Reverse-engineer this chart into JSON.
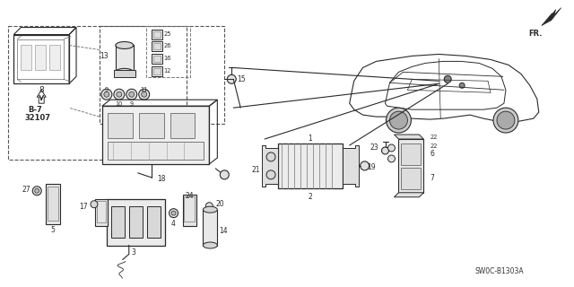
{
  "bg_color": "#ffffff",
  "line_color": "#2a2a2a",
  "diagram_code": "SW0C-B1303A",
  "figsize": [
    6.4,
    3.2
  ],
  "dpi": 100
}
